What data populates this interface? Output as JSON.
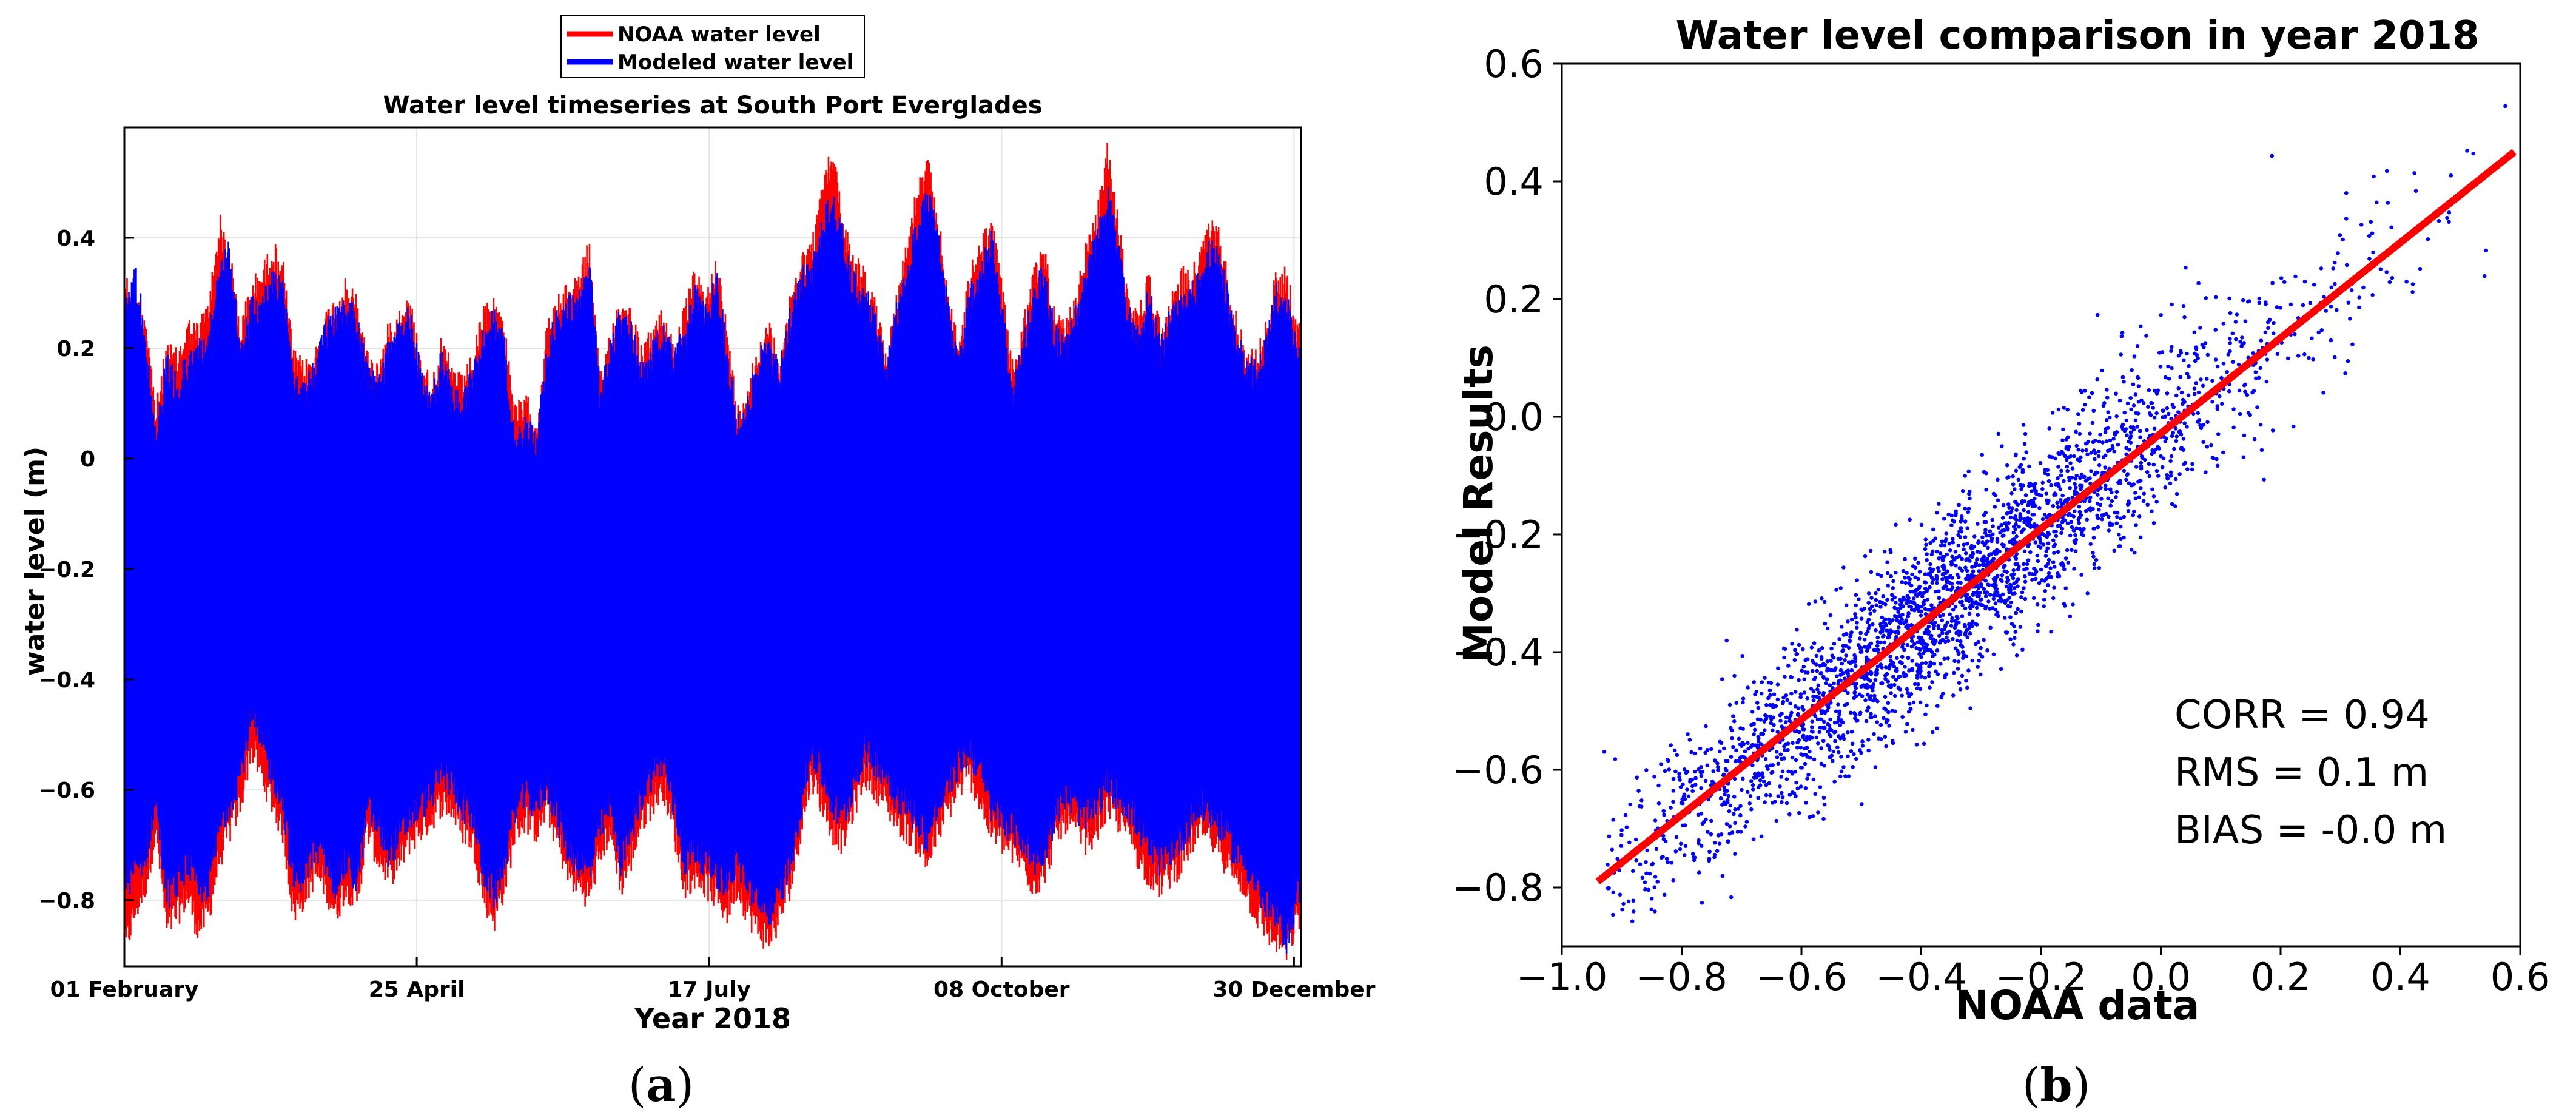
{
  "colors": {
    "noaa": "#ff0000",
    "model": "#0000ff",
    "fit_line": "#ff0000",
    "grid": "#e4e4e4",
    "axis": "#000000"
  },
  "chart_data": [
    {
      "type": "line",
      "panel_label_open": "(",
      "panel_label_letter": "a",
      "panel_label_close": ")",
      "title": "Water level timeseries at South Port Everglades",
      "xlabel": "Year 2018",
      "ylabel": "water level (m)",
      "x_tick_labels": [
        "01 February",
        "25 April",
        "17 July",
        "08 October",
        "30 December"
      ],
      "x_tick_days": [
        0,
        83,
        166,
        249,
        332
      ],
      "xlim_days": [
        0,
        334
      ],
      "ylim": [
        -0.92,
        0.6
      ],
      "y_ticks": [
        0.4,
        0.2,
        0,
        -0.2,
        -0.4,
        -0.6,
        -0.8
      ],
      "y_tick_labels": [
        "0.4",
        "0.2",
        "0",
        "−0.2",
        "−0.4",
        "−0.6",
        "−0.8"
      ],
      "grid": true,
      "legend_position": "top-center, outside plot",
      "series": [
        {
          "name": "NOAA water level",
          "color": "#ff0000",
          "envelope_days": [
            0,
            3,
            6,
            9,
            12,
            15,
            18,
            21,
            24,
            27,
            30,
            33,
            36,
            39,
            42,
            45,
            48,
            51,
            54,
            57,
            60,
            63,
            66,
            69,
            72,
            75,
            78,
            81,
            84,
            87,
            90,
            93,
            96,
            99,
            102,
            105,
            108,
            111,
            114,
            117,
            120,
            123,
            126,
            129,
            132,
            135,
            138,
            141,
            144,
            147,
            150,
            153,
            156,
            159,
            162,
            165,
            168,
            171,
            174,
            177,
            180,
            183,
            186,
            189,
            192,
            195,
            198,
            201,
            204,
            207,
            210,
            213,
            216,
            219,
            222,
            225,
            228,
            231,
            234,
            237,
            240,
            243,
            246,
            249,
            252,
            255,
            258,
            261,
            264,
            267,
            270,
            273,
            276,
            279,
            282,
            285,
            288,
            291,
            294,
            297,
            300,
            303,
            306,
            309,
            312,
            315,
            318,
            321,
            324,
            327,
            330,
            333
          ],
          "envelope_max": [
            0.35,
            0.3,
            0.28,
            0.1,
            0.22,
            0.2,
            0.26,
            0.25,
            0.3,
            0.45,
            0.38,
            0.25,
            0.33,
            0.35,
            0.4,
            0.37,
            0.2,
            0.18,
            0.2,
            0.27,
            0.3,
            0.33,
            0.3,
            0.2,
            0.18,
            0.25,
            0.28,
            0.3,
            0.2,
            0.15,
            0.22,
            0.18,
            0.15,
            0.2,
            0.28,
            0.3,
            0.25,
            0.1,
            0.12,
            0.08,
            0.25,
            0.3,
            0.32,
            0.35,
            0.4,
            0.15,
            0.25,
            0.3,
            0.28,
            0.2,
            0.25,
            0.28,
            0.22,
            0.28,
            0.35,
            0.3,
            0.38,
            0.25,
            0.1,
            0.15,
            0.22,
            0.25,
            0.2,
            0.3,
            0.38,
            0.4,
            0.5,
            0.58,
            0.45,
            0.38,
            0.35,
            0.3,
            0.2,
            0.3,
            0.4,
            0.5,
            0.55,
            0.45,
            0.3,
            0.22,
            0.35,
            0.4,
            0.45,
            0.33,
            0.18,
            0.25,
            0.35,
            0.4,
            0.28,
            0.25,
            0.3,
            0.4,
            0.45,
            0.58,
            0.45,
            0.3,
            0.28,
            0.35,
            0.25,
            0.3,
            0.35,
            0.35,
            0.4,
            0.45,
            0.4,
            0.28,
            0.22,
            0.2,
            0.25,
            0.35,
            0.35,
            0.25
          ],
          "envelope_min": [
            -0.92,
            -0.85,
            -0.8,
            -0.7,
            -0.88,
            -0.85,
            -0.82,
            -0.88,
            -0.85,
            -0.75,
            -0.7,
            -0.65,
            -0.55,
            -0.6,
            -0.65,
            -0.7,
            -0.85,
            -0.82,
            -0.78,
            -0.8,
            -0.85,
            -0.8,
            -0.83,
            -0.7,
            -0.75,
            -0.78,
            -0.76,
            -0.72,
            -0.7,
            -0.68,
            -0.65,
            -0.66,
            -0.7,
            -0.72,
            -0.82,
            -0.86,
            -0.8,
            -0.7,
            -0.68,
            -0.7,
            -0.66,
            -0.72,
            -0.78,
            -0.8,
            -0.82,
            -0.74,
            -0.7,
            -0.8,
            -0.75,
            -0.68,
            -0.65,
            -0.62,
            -0.7,
            -0.8,
            -0.78,
            -0.8,
            -0.82,
            -0.85,
            -0.8,
            -0.85,
            -0.88,
            -0.9,
            -0.86,
            -0.8,
            -0.7,
            -0.6,
            -0.65,
            -0.7,
            -0.72,
            -0.66,
            -0.6,
            -0.62,
            -0.65,
            -0.68,
            -0.7,
            -0.72,
            -0.76,
            -0.7,
            -0.66,
            -0.62,
            -0.6,
            -0.65,
            -0.7,
            -0.72,
            -0.74,
            -0.76,
            -0.8,
            -0.78,
            -0.72,
            -0.68,
            -0.7,
            -0.72,
            -0.7,
            -0.66,
            -0.68,
            -0.7,
            -0.75,
            -0.78,
            -0.8,
            -0.78,
            -0.76,
            -0.72,
            -0.7,
            -0.72,
            -0.75,
            -0.78,
            -0.8,
            -0.85,
            -0.88,
            -0.9,
            -0.92,
            -0.86
          ]
        },
        {
          "name": "Modeled water level",
          "color": "#0000ff",
          "envelope_days": [
            0,
            3,
            6,
            9,
            12,
            15,
            18,
            21,
            24,
            27,
            30,
            33,
            36,
            39,
            42,
            45,
            48,
            51,
            54,
            57,
            60,
            63,
            66,
            69,
            72,
            75,
            78,
            81,
            84,
            87,
            90,
            93,
            96,
            99,
            102,
            105,
            108,
            111,
            114,
            117,
            120,
            123,
            126,
            129,
            132,
            135,
            138,
            141,
            144,
            147,
            150,
            153,
            156,
            159,
            162,
            165,
            168,
            171,
            174,
            177,
            180,
            183,
            186,
            189,
            192,
            195,
            198,
            201,
            204,
            207,
            210,
            213,
            216,
            219,
            222,
            225,
            228,
            231,
            234,
            237,
            240,
            243,
            246,
            249,
            252,
            255,
            258,
            261,
            264,
            267,
            270,
            273,
            276,
            279,
            282,
            285,
            288,
            291,
            294,
            297,
            300,
            303,
            306,
            309,
            312,
            315,
            318,
            321,
            324,
            327,
            330,
            333
          ],
          "envelope_max": [
            0.3,
            0.36,
            0.25,
            0.05,
            0.2,
            0.15,
            0.2,
            0.22,
            0.25,
            0.36,
            0.4,
            0.2,
            0.3,
            0.3,
            0.35,
            0.34,
            0.18,
            0.15,
            0.18,
            0.25,
            0.28,
            0.3,
            0.28,
            0.18,
            0.15,
            0.22,
            0.26,
            0.28,
            0.18,
            0.12,
            0.2,
            0.15,
            0.12,
            0.18,
            0.25,
            0.28,
            0.22,
            0.05,
            0.08,
            0.06,
            0.22,
            0.28,
            0.3,
            0.32,
            0.38,
            0.14,
            0.22,
            0.28,
            0.25,
            0.18,
            0.22,
            0.25,
            0.2,
            0.25,
            0.32,
            0.28,
            0.35,
            0.22,
            0.08,
            0.12,
            0.2,
            0.22,
            0.18,
            0.28,
            0.35,
            0.36,
            0.44,
            0.5,
            0.42,
            0.34,
            0.32,
            0.28,
            0.18,
            0.28,
            0.35,
            0.45,
            0.5,
            0.42,
            0.28,
            0.2,
            0.32,
            0.36,
            0.42,
            0.3,
            0.15,
            0.22,
            0.32,
            0.36,
            0.25,
            0.22,
            0.28,
            0.35,
            0.42,
            0.5,
            0.42,
            0.28,
            0.25,
            0.32,
            0.22,
            0.28,
            0.32,
            0.32,
            0.36,
            0.42,
            0.35,
            0.25,
            0.2,
            0.18,
            0.22,
            0.32,
            0.3,
            0.22
          ],
          "envelope_min": [
            -0.8,
            -0.78,
            -0.75,
            -0.65,
            -0.82,
            -0.8,
            -0.76,
            -0.82,
            -0.8,
            -0.7,
            -0.65,
            -0.6,
            -0.5,
            -0.55,
            -0.6,
            -0.65,
            -0.8,
            -0.78,
            -0.74,
            -0.76,
            -0.8,
            -0.76,
            -0.8,
            -0.66,
            -0.7,
            -0.74,
            -0.72,
            -0.68,
            -0.66,
            -0.64,
            -0.6,
            -0.62,
            -0.66,
            -0.68,
            -0.78,
            -0.82,
            -0.76,
            -0.66,
            -0.64,
            -0.66,
            -0.62,
            -0.68,
            -0.74,
            -0.76,
            -0.78,
            -0.7,
            -0.66,
            -0.76,
            -0.7,
            -0.64,
            -0.6,
            -0.58,
            -0.66,
            -0.76,
            -0.74,
            -0.76,
            -0.78,
            -0.8,
            -0.76,
            -0.8,
            -0.84,
            -0.85,
            -0.82,
            -0.76,
            -0.66,
            -0.56,
            -0.6,
            -0.66,
            -0.68,
            -0.62,
            -0.56,
            -0.58,
            -0.6,
            -0.64,
            -0.66,
            -0.68,
            -0.72,
            -0.66,
            -0.62,
            -0.58,
            -0.56,
            -0.6,
            -0.66,
            -0.68,
            -0.7,
            -0.72,
            -0.76,
            -0.74,
            -0.68,
            -0.64,
            -0.66,
            -0.68,
            -0.66,
            -0.62,
            -0.64,
            -0.66,
            -0.7,
            -0.74,
            -0.76,
            -0.74,
            -0.72,
            -0.68,
            -0.66,
            -0.68,
            -0.7,
            -0.74,
            -0.76,
            -0.8,
            -0.84,
            -0.86,
            -0.9,
            -0.82
          ]
        }
      ]
    },
    {
      "type": "scatter",
      "panel_label_open": "(",
      "panel_label_letter": "b",
      "panel_label_close": ")",
      "title": "Water level comparison in year 2018",
      "xlabel": "NOAA data",
      "ylabel": "Model Results",
      "xlim": [
        -1.0,
        0.6
      ],
      "ylim": [
        -0.9,
        0.6
      ],
      "x_ticks": [
        -1.0,
        -0.8,
        -0.6,
        -0.4,
        -0.2,
        0.0,
        0.2,
        0.4,
        0.6
      ],
      "x_tick_labels": [
        "−1.0",
        "−0.8",
        "−0.6",
        "−0.4",
        "−0.2",
        "0.0",
        "0.2",
        "0.4",
        "0.6"
      ],
      "y_ticks": [
        0.6,
        0.4,
        0.2,
        0.0,
        -0.2,
        -0.4,
        -0.6,
        -0.8
      ],
      "y_tick_labels": [
        "0.6",
        "0.4",
        "0.2",
        "0.0",
        "−0.2",
        "−0.4",
        "−0.6",
        "−0.8"
      ],
      "grid": false,
      "point_color": "#0000ff",
      "point_cloud": {
        "x_range": [
          -0.93,
          0.58
        ],
        "relation": "y ≈ 0.82·x − 0.03",
        "residual_sd": 0.075,
        "approx_points": 8760
      },
      "fit_line": {
        "color": "#ff0000",
        "x": [
          -0.94,
          0.59
        ],
        "y": [
          -0.79,
          0.45
        ]
      },
      "annotations": [
        "CORR = 0.94",
        "RMS = 0.1 m",
        "BIAS = -0.0 m"
      ]
    }
  ]
}
